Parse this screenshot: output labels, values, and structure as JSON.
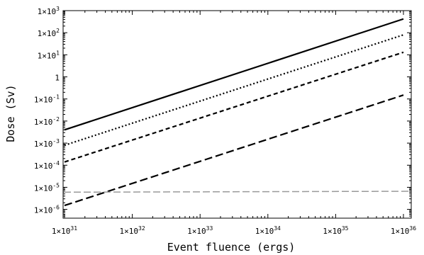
{
  "chart_data": {
    "type": "line",
    "xlabel": "Event fluence (ergs)",
    "ylabel": "Dose (Sv)",
    "xscale": "log",
    "yscale": "log",
    "xlim": [
      1e+31,
      1e+36
    ],
    "ylim": [
      4e-07,
      1000.0
    ],
    "grid": false,
    "x_ticks": [
      {
        "value": 1e+31,
        "mantissa": "1×10",
        "exp": "31"
      },
      {
        "value": 1e+32,
        "mantissa": "1×10",
        "exp": "32"
      },
      {
        "value": 1e+33,
        "mantissa": "1×10",
        "exp": "33"
      },
      {
        "value": 1e+34,
        "mantissa": "1×10",
        "exp": "34"
      },
      {
        "value": 1e+35,
        "mantissa": "1×10",
        "exp": "35"
      },
      {
        "value": 1e+36,
        "mantissa": "1×10",
        "exp": "36"
      }
    ],
    "y_ticks": [
      {
        "value": 1e-06,
        "mantissa": "1×10",
        "exp": "-6"
      },
      {
        "value": 1e-05,
        "mantissa": "1×10",
        "exp": "-5"
      },
      {
        "value": 0.0001,
        "mantissa": "1×10",
        "exp": "-4"
      },
      {
        "value": 0.001,
        "mantissa": "1×10",
        "exp": "-3"
      },
      {
        "value": 0.01,
        "mantissa": "1×10",
        "exp": "-2"
      },
      {
        "value": 0.1,
        "mantissa": "1×10",
        "exp": "-1"
      },
      {
        "value": 1,
        "mantissa": "1",
        "exp": ""
      },
      {
        "value": 10.0,
        "mantissa": "1×10",
        "exp": "1"
      },
      {
        "value": 100.0,
        "mantissa": "1×10",
        "exp": "2"
      },
      {
        "value": 1000.0,
        "mantissa": "1×10",
        "exp": "3"
      }
    ],
    "series": [
      {
        "style": "solid",
        "x": [
          1e+31,
          1e+36
        ],
        "y": [
          0.004,
          420
        ]
      },
      {
        "style": "dotted",
        "x": [
          1e+31,
          1e+36
        ],
        "y": [
          0.0008,
          80
        ]
      },
      {
        "style": "dashed",
        "x": [
          1e+31,
          1e+36
        ],
        "y": [
          0.00014,
          13
        ]
      },
      {
        "style": "long-dashed",
        "x": [
          1e+31,
          1e+36
        ],
        "y": [
          1.5e-06,
          0.15
        ]
      },
      {
        "style": "gray-dash",
        "color": "#9a9a9a",
        "x": [
          1e+31,
          1e+36
        ],
        "y": [
          6e-06,
          6.6e-06
        ]
      }
    ]
  }
}
